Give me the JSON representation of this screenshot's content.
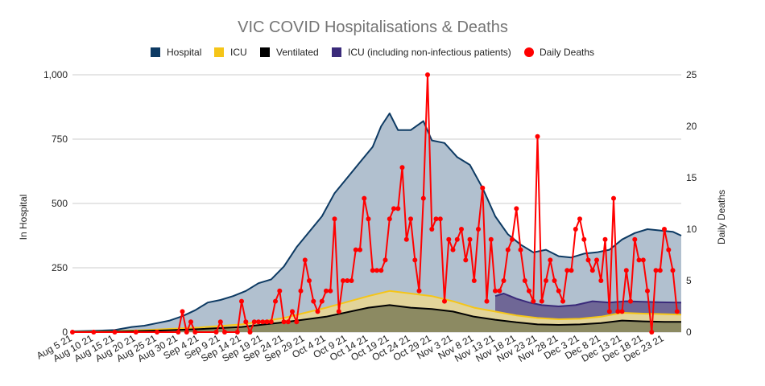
{
  "chart_data": {
    "type": "area",
    "title": "VIC COVID Hospitalisations & Deaths",
    "ylabel": "In Hospital",
    "y2label": "Daily Deaths",
    "ylim": [
      0,
      1000
    ],
    "y2lim": [
      0,
      25
    ],
    "y_ticks": [
      "0",
      "250",
      "500",
      "750",
      "1,000"
    ],
    "y2_ticks": [
      "0",
      "5",
      "10",
      "15",
      "20",
      "25"
    ],
    "x_start": "2021-08-05",
    "x_end": "2021-12-27",
    "x_tick_labels": [
      "Aug 5 21",
      "Aug 10 21",
      "Aug 15 21",
      "Aug 20 21",
      "Aug 25 21",
      "Aug 30 21",
      "Sep 4 21",
      "Sep 9 21",
      "Sep 14 21",
      "Sep 19 21",
      "Sep 24 21",
      "Sep 29 21",
      "Oct 4 21",
      "Oct 9 21",
      "Oct 14 21",
      "Oct 19 21",
      "Oct 24 21",
      "Oct 29 21",
      "Nov 3 21",
      "Nov 8 21",
      "Nov 13 21",
      "Nov 18 21",
      "Nov 23 21",
      "Nov 28 21",
      "Dec 3 21",
      "Dec 8 21",
      "Dec 13 21",
      "Dec 18 21",
      "Dec 23 21"
    ],
    "legend_position": "top",
    "grid": true,
    "series": [
      {
        "name": "Hospital",
        "type": "area",
        "color": "#0d3a63",
        "fill": "#b1c0cf",
        "points": [
          [
            "2021-08-05",
            3
          ],
          [
            "2021-08-10",
            5
          ],
          [
            "2021-08-15",
            8
          ],
          [
            "2021-08-19",
            20
          ],
          [
            "2021-08-22",
            25
          ],
          [
            "2021-08-25",
            35
          ],
          [
            "2021-08-28",
            45
          ],
          [
            "2021-08-31",
            62
          ],
          [
            "2021-09-03",
            85
          ],
          [
            "2021-09-06",
            115
          ],
          [
            "2021-09-09",
            125
          ],
          [
            "2021-09-12",
            140
          ],
          [
            "2021-09-15",
            160
          ],
          [
            "2021-09-18",
            190
          ],
          [
            "2021-09-21",
            205
          ],
          [
            "2021-09-24",
            255
          ],
          [
            "2021-09-27",
            330
          ],
          [
            "2021-09-30",
            390
          ],
          [
            "2021-10-03",
            450
          ],
          [
            "2021-10-06",
            540
          ],
          [
            "2021-10-09",
            600
          ],
          [
            "2021-10-12",
            660
          ],
          [
            "2021-10-15",
            720
          ],
          [
            "2021-10-17",
            800
          ],
          [
            "2021-10-19",
            850
          ],
          [
            "2021-10-21",
            785
          ],
          [
            "2021-10-24",
            785
          ],
          [
            "2021-10-27",
            820
          ],
          [
            "2021-10-29",
            745
          ],
          [
            "2021-11-01",
            735
          ],
          [
            "2021-11-04",
            680
          ],
          [
            "2021-11-07",
            650
          ],
          [
            "2021-11-10",
            560
          ],
          [
            "2021-11-13",
            450
          ],
          [
            "2021-11-16",
            380
          ],
          [
            "2021-11-19",
            340
          ],
          [
            "2021-11-22",
            310
          ],
          [
            "2021-11-25",
            320
          ],
          [
            "2021-11-28",
            295
          ],
          [
            "2021-12-01",
            290
          ],
          [
            "2021-12-04",
            305
          ],
          [
            "2021-12-07",
            310
          ],
          [
            "2021-12-10",
            320
          ],
          [
            "2021-12-13",
            360
          ],
          [
            "2021-12-16",
            385
          ],
          [
            "2021-12-19",
            400
          ],
          [
            "2021-12-22",
            395
          ],
          [
            "2021-12-25",
            390
          ],
          [
            "2021-12-27",
            375
          ]
        ]
      },
      {
        "name": "ICU",
        "type": "area",
        "color": "#f5c518",
        "fill": "#e2d49a",
        "points": [
          [
            "2021-08-05",
            1
          ],
          [
            "2021-08-15",
            3
          ],
          [
            "2021-08-25",
            10
          ],
          [
            "2021-09-04",
            18
          ],
          [
            "2021-09-14",
            30
          ],
          [
            "2021-09-24",
            55
          ],
          [
            "2021-10-04",
            95
          ],
          [
            "2021-10-14",
            140
          ],
          [
            "2021-10-19",
            160
          ],
          [
            "2021-10-24",
            150
          ],
          [
            "2021-10-29",
            140
          ],
          [
            "2021-11-03",
            120
          ],
          [
            "2021-11-08",
            95
          ],
          [
            "2021-11-13",
            80
          ],
          [
            "2021-11-18",
            65
          ],
          [
            "2021-11-23",
            55
          ],
          [
            "2021-11-28",
            50
          ],
          [
            "2021-12-03",
            52
          ],
          [
            "2021-12-08",
            60
          ],
          [
            "2021-12-13",
            75
          ],
          [
            "2021-12-18",
            72
          ],
          [
            "2021-12-23",
            70
          ],
          [
            "2021-12-27",
            68
          ]
        ]
      },
      {
        "name": "Ventilated",
        "type": "area",
        "color": "#000000",
        "fill": "#8c8a62",
        "points": [
          [
            "2021-08-05",
            0
          ],
          [
            "2021-08-15",
            2
          ],
          [
            "2021-08-25",
            6
          ],
          [
            "2021-09-04",
            12
          ],
          [
            "2021-09-14",
            20
          ],
          [
            "2021-09-24",
            38
          ],
          [
            "2021-10-04",
            60
          ],
          [
            "2021-10-14",
            95
          ],
          [
            "2021-10-19",
            105
          ],
          [
            "2021-10-24",
            95
          ],
          [
            "2021-10-29",
            90
          ],
          [
            "2021-11-03",
            80
          ],
          [
            "2021-11-08",
            60
          ],
          [
            "2021-11-13",
            48
          ],
          [
            "2021-11-18",
            38
          ],
          [
            "2021-11-23",
            30
          ],
          [
            "2021-11-28",
            28
          ],
          [
            "2021-12-03",
            30
          ],
          [
            "2021-12-08",
            35
          ],
          [
            "2021-12-13",
            45
          ],
          [
            "2021-12-18",
            42
          ],
          [
            "2021-12-23",
            40
          ],
          [
            "2021-12-27",
            40
          ]
        ]
      },
      {
        "name": "ICU (including non-infectious patients)",
        "type": "area",
        "color": "#3a2a7a",
        "fill": "#6f6796",
        "points": [
          [
            "2021-11-13",
            140
          ],
          [
            "2021-11-15",
            150
          ],
          [
            "2021-11-18",
            130
          ],
          [
            "2021-11-21",
            115
          ],
          [
            "2021-11-24",
            105
          ],
          [
            "2021-11-28",
            100
          ],
          [
            "2021-12-02",
            105
          ],
          [
            "2021-12-06",
            120
          ],
          [
            "2021-12-10",
            115
          ],
          [
            "2021-12-14",
            120
          ],
          [
            "2021-12-18",
            118
          ],
          [
            "2021-12-22",
            116
          ],
          [
            "2021-12-27",
            115
          ]
        ]
      },
      {
        "name": "Daily Deaths",
        "type": "line",
        "axis": "right",
        "color": "#ff0000",
        "points": [
          [
            "2021-08-05",
            0
          ],
          [
            "2021-08-10",
            0
          ],
          [
            "2021-08-15",
            0
          ],
          [
            "2021-08-20",
            0
          ],
          [
            "2021-08-25",
            0
          ],
          [
            "2021-08-30",
            0
          ],
          [
            "2021-08-31",
            2
          ],
          [
            "2021-09-01",
            0
          ],
          [
            "2021-09-02",
            1
          ],
          [
            "2021-09-03",
            0
          ],
          [
            "2021-09-08",
            0
          ],
          [
            "2021-09-09",
            1
          ],
          [
            "2021-09-10",
            0
          ],
          [
            "2021-09-13",
            0
          ],
          [
            "2021-09-14",
            3
          ],
          [
            "2021-09-15",
            1
          ],
          [
            "2021-09-16",
            0
          ],
          [
            "2021-09-17",
            1
          ],
          [
            "2021-09-18",
            1
          ],
          [
            "2021-09-19",
            1
          ],
          [
            "2021-09-20",
            1
          ],
          [
            "2021-09-21",
            1
          ],
          [
            "2021-09-22",
            3
          ],
          [
            "2021-09-23",
            4
          ],
          [
            "2021-09-24",
            1
          ],
          [
            "2021-09-25",
            1
          ],
          [
            "2021-09-26",
            2
          ],
          [
            "2021-09-27",
            1
          ],
          [
            "2021-09-28",
            4
          ],
          [
            "2021-09-29",
            7
          ],
          [
            "2021-09-30",
            5
          ],
          [
            "2021-10-01",
            3
          ],
          [
            "2021-10-02",
            2
          ],
          [
            "2021-10-03",
            3
          ],
          [
            "2021-10-04",
            4
          ],
          [
            "2021-10-05",
            4
          ],
          [
            "2021-10-06",
            11
          ],
          [
            "2021-10-07",
            2
          ],
          [
            "2021-10-08",
            5
          ],
          [
            "2021-10-09",
            5
          ],
          [
            "2021-10-10",
            5
          ],
          [
            "2021-10-11",
            8
          ],
          [
            "2021-10-12",
            8
          ],
          [
            "2021-10-13",
            13
          ],
          [
            "2021-10-14",
            11
          ],
          [
            "2021-10-15",
            6
          ],
          [
            "2021-10-16",
            6
          ],
          [
            "2021-10-17",
            6
          ],
          [
            "2021-10-18",
            7
          ],
          [
            "2021-10-19",
            11
          ],
          [
            "2021-10-20",
            12
          ],
          [
            "2021-10-21",
            12
          ],
          [
            "2021-10-22",
            16
          ],
          [
            "2021-10-23",
            9
          ],
          [
            "2021-10-24",
            11
          ],
          [
            "2021-10-25",
            7
          ],
          [
            "2021-10-26",
            4
          ],
          [
            "2021-10-27",
            13
          ],
          [
            "2021-10-28",
            25
          ],
          [
            "2021-10-29",
            10
          ],
          [
            "2021-10-30",
            11
          ],
          [
            "2021-10-31",
            11
          ],
          [
            "2021-11-01",
            3
          ],
          [
            "2021-11-02",
            9
          ],
          [
            "2021-11-03",
            8
          ],
          [
            "2021-11-04",
            9
          ],
          [
            "2021-11-05",
            10
          ],
          [
            "2021-11-06",
            7
          ],
          [
            "2021-11-07",
            9
          ],
          [
            "2021-11-08",
            5
          ],
          [
            "2021-11-09",
            10
          ],
          [
            "2021-11-10",
            14
          ],
          [
            "2021-11-11",
            3
          ],
          [
            "2021-11-12",
            9
          ],
          [
            "2021-11-13",
            4
          ],
          [
            "2021-11-14",
            4
          ],
          [
            "2021-11-15",
            5
          ],
          [
            "2021-11-16",
            8
          ],
          [
            "2021-11-17",
            9
          ],
          [
            "2021-11-18",
            12
          ],
          [
            "2021-11-19",
            8
          ],
          [
            "2021-11-20",
            5
          ],
          [
            "2021-11-21",
            4
          ],
          [
            "2021-11-22",
            3
          ],
          [
            "2021-11-23",
            19
          ],
          [
            "2021-11-24",
            3
          ],
          [
            "2021-11-25",
            5
          ],
          [
            "2021-11-26",
            7
          ],
          [
            "2021-11-27",
            5
          ],
          [
            "2021-11-28",
            4
          ],
          [
            "2021-11-29",
            3
          ],
          [
            "2021-11-30",
            6
          ],
          [
            "2021-12-01",
            6
          ],
          [
            "2021-12-02",
            10
          ],
          [
            "2021-12-03",
            11
          ],
          [
            "2021-12-04",
            9
          ],
          [
            "2021-12-05",
            7
          ],
          [
            "2021-12-06",
            6
          ],
          [
            "2021-12-07",
            7
          ],
          [
            "2021-12-08",
            5
          ],
          [
            "2021-12-09",
            9
          ],
          [
            "2021-12-10",
            2
          ],
          [
            "2021-12-11",
            13
          ],
          [
            "2021-12-12",
            2
          ],
          [
            "2021-12-13",
            2
          ],
          [
            "2021-12-14",
            6
          ],
          [
            "2021-12-15",
            3
          ],
          [
            "2021-12-16",
            9
          ],
          [
            "2021-12-17",
            7
          ],
          [
            "2021-12-18",
            7
          ],
          [
            "2021-12-19",
            4
          ],
          [
            "2021-12-20",
            0
          ],
          [
            "2021-12-21",
            6
          ],
          [
            "2021-12-22",
            6
          ],
          [
            "2021-12-23",
            10
          ],
          [
            "2021-12-24",
            8
          ],
          [
            "2021-12-25",
            6
          ],
          [
            "2021-12-26",
            2
          ]
        ]
      }
    ]
  }
}
